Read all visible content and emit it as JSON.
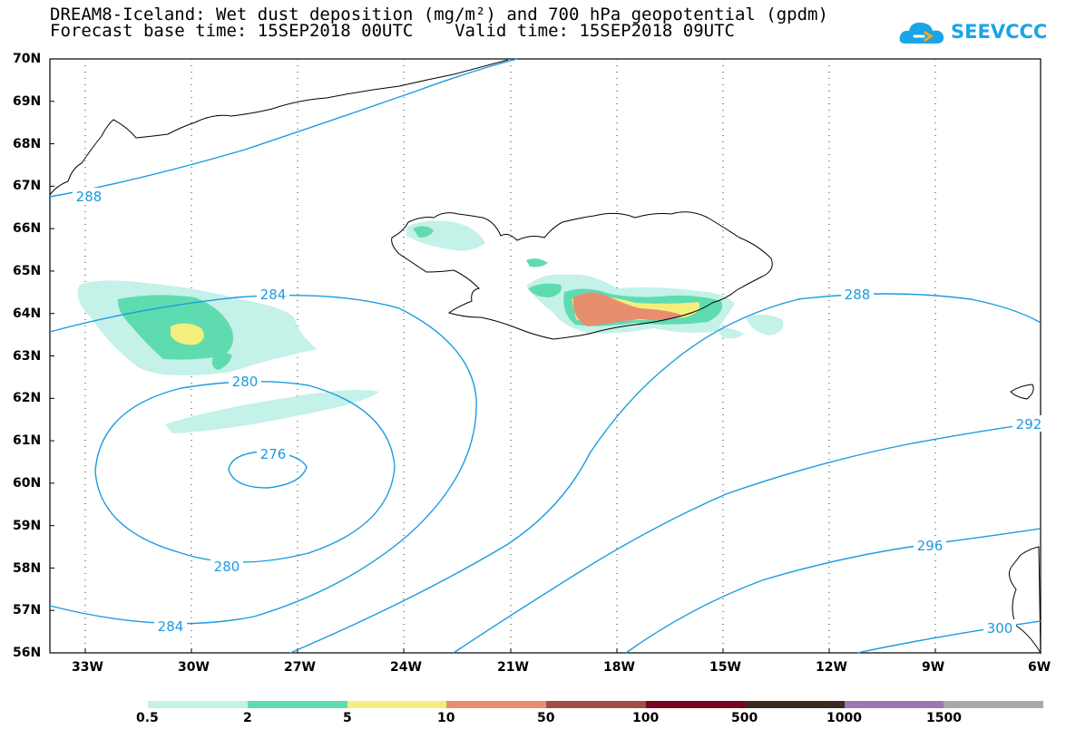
{
  "title": {
    "line1": "DREAM8-Iceland: Wet dust deposition (mg/m²) and 700 hPa geopotential (gpdm)",
    "line2": "Forecast base time: 15SEP2018 00UTC    Valid time: 15SEP2018 09UTC"
  },
  "logo": {
    "text": "SEEVCCC",
    "color": "#1aa5e6"
  },
  "axes": {
    "lat_labels": [
      "70N",
      "69N",
      "68N",
      "67N",
      "66N",
      "65N",
      "64N",
      "63N",
      "62N",
      "61N",
      "60N",
      "59N",
      "58N",
      "57N",
      "56N"
    ],
    "lon_labels": [
      "33W",
      "30W",
      "27W",
      "24W",
      "21W",
      "18W",
      "15W",
      "12W",
      "9W",
      "6W"
    ],
    "lat_range": [
      56,
      70
    ],
    "lon_range": [
      -34.0,
      -6.0
    ]
  },
  "contours": {
    "color": "#1a9be0",
    "labels": [
      "288",
      "284",
      "280",
      "276",
      "280",
      "284",
      "288",
      "292",
      "296",
      "300"
    ]
  },
  "legend": {
    "labels": [
      "0.5",
      "2",
      "5",
      "10",
      "50",
      "100",
      "500",
      "1000",
      "1500"
    ],
    "colors": [
      "#c4f1e8",
      "#5fdbb0",
      "#f4ee7c",
      "#e68e6e",
      "#a24e47",
      "#7a0520",
      "#3b2a1e",
      "#9b78b3",
      "#a9a9a9"
    ]
  }
}
